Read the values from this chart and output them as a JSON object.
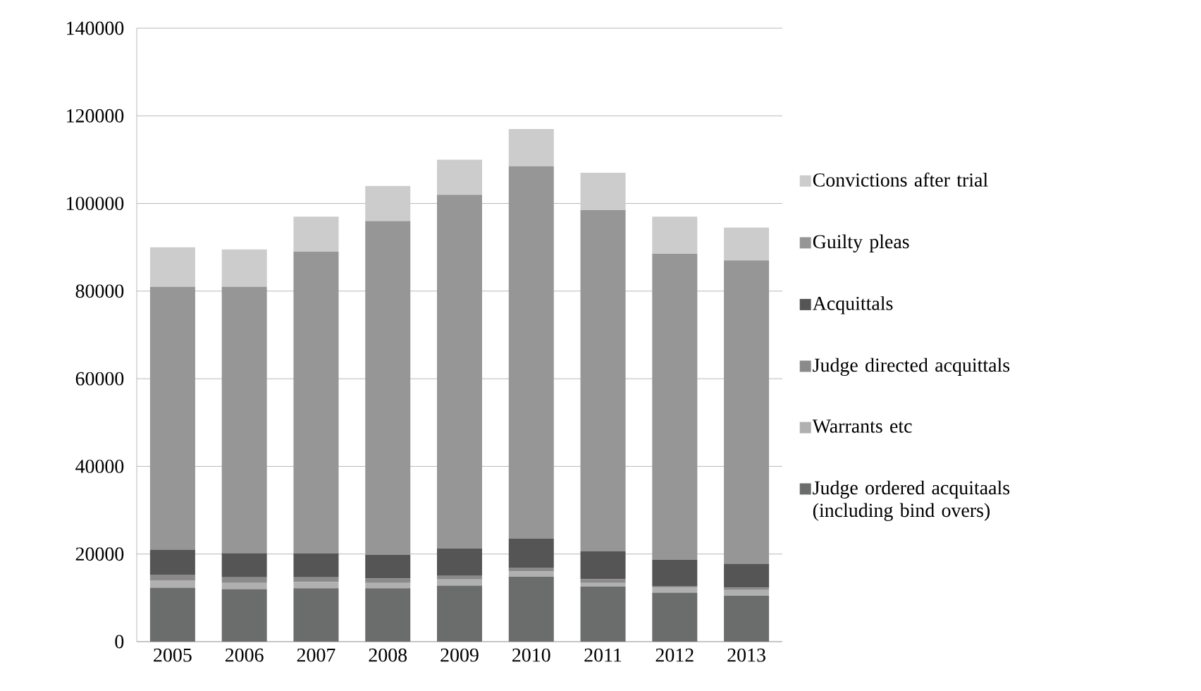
{
  "chart_data": {
    "type": "bar",
    "stacked": true,
    "categories": [
      "2005",
      "2006",
      "2007",
      "2008",
      "2009",
      "2010",
      "2011",
      "2012",
      "2013"
    ],
    "series": [
      {
        "name": "Judge ordered acquitaals (including bind overs)",
        "color": "#6b6d6c",
        "values": [
          12300,
          12000,
          12200,
          12200,
          12800,
          14800,
          12600,
          11200,
          10500
        ]
      },
      {
        "name": "Warrants etc",
        "color": "#b0b0b0",
        "values": [
          1700,
          1400,
          1400,
          1200,
          1400,
          1200,
          800,
          1100,
          1300
        ]
      },
      {
        "name": "Judge directed acquittals",
        "color": "#8a8a8a",
        "values": [
          1300,
          1300,
          1100,
          1000,
          800,
          900,
          900,
          400,
          500
        ]
      },
      {
        "name": "Acquittals",
        "color": "#555555",
        "values": [
          5700,
          5500,
          5400,
          5400,
          6300,
          6600,
          6300,
          6000,
          5500
        ]
      },
      {
        "name": "Guilty pleas",
        "color": "#969696",
        "values": [
          60000,
          60800,
          68900,
          76200,
          80700,
          85000,
          77900,
          69800,
          69200
        ]
      },
      {
        "name": "Convictions after trial",
        "color": "#cccccc",
        "values": [
          9000,
          8500,
          8000,
          8000,
          8000,
          8500,
          8500,
          8500,
          7500
        ]
      }
    ],
    "ylim": [
      0,
      140000
    ],
    "yticks": [
      0,
      20000,
      40000,
      60000,
      80000,
      100000,
      120000,
      140000
    ],
    "grid": "y",
    "legend": "right"
  }
}
